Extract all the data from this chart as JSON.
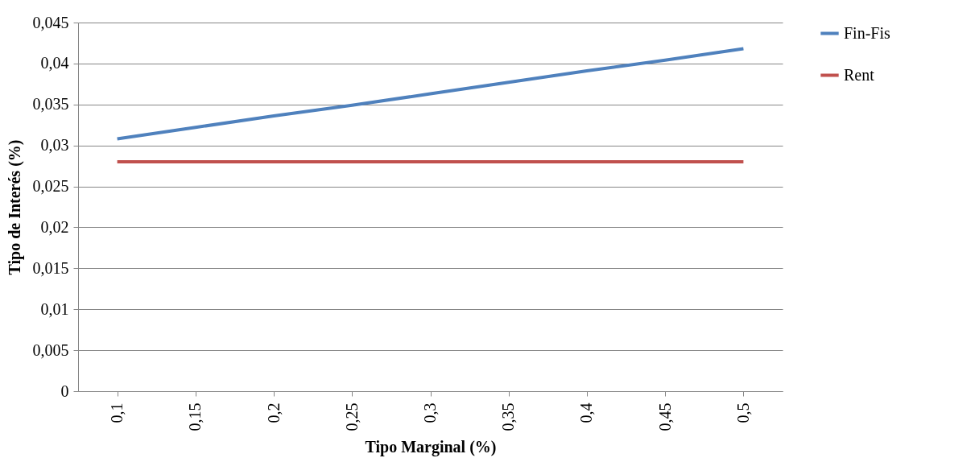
{
  "chart_data": {
    "type": "line",
    "xlabel": "Tipo Marginal (%)",
    "ylabel": "Tipo de Interés (%)",
    "categories": [
      "0,1",
      "0,15",
      "0,2",
      "0,25",
      "0,3",
      "0,35",
      "0,4",
      "0,45",
      "0,5"
    ],
    "ylim": [
      0,
      0.045
    ],
    "yticks": [
      {
        "value": 0,
        "label": "0"
      },
      {
        "value": 0.005,
        "label": "0,005"
      },
      {
        "value": 0.01,
        "label": "0,01"
      },
      {
        "value": 0.015,
        "label": "0,015"
      },
      {
        "value": 0.02,
        "label": "0,02"
      },
      {
        "value": 0.025,
        "label": "0,025"
      },
      {
        "value": 0.03,
        "label": "0,03"
      },
      {
        "value": 0.035,
        "label": "0,035"
      },
      {
        "value": 0.04,
        "label": "0,04"
      },
      {
        "value": 0.045,
        "label": "0,045"
      }
    ],
    "grid": "y",
    "legend": "right",
    "marker": "none",
    "line_style": "solid",
    "series": [
      {
        "name": "Fin-Fis",
        "color": "#4f81bd",
        "values": [
          0.0308,
          0.0322,
          0.0336,
          0.0349,
          0.0363,
          0.0377,
          0.0391,
          0.0404,
          0.0418
        ]
      },
      {
        "name": "Rent",
        "color": "#c0504d",
        "values": [
          0.028,
          0.028,
          0.028,
          0.028,
          0.028,
          0.028,
          0.028,
          0.028,
          0.028
        ]
      }
    ]
  }
}
